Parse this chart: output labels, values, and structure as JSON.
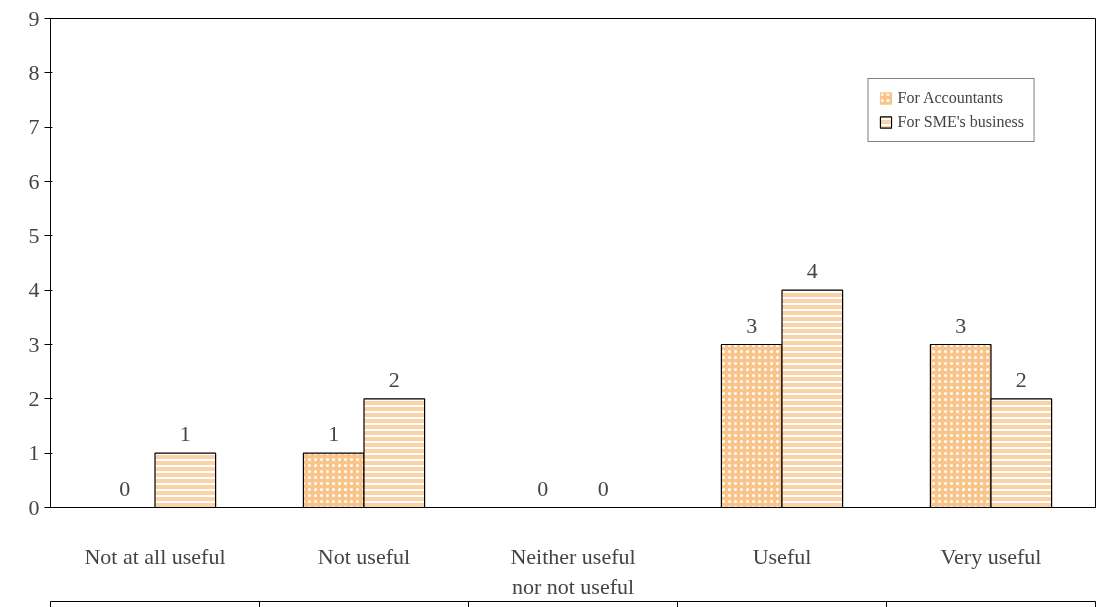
{
  "chart_data": {
    "type": "bar",
    "categories": [
      "Not at all useful",
      "Not useful",
      "Neither useful\nnor not useful",
      "Useful",
      "Very useful"
    ],
    "series": [
      {
        "name": "For Accountants",
        "color": "#f9c48a",
        "values": [
          0,
          1,
          0,
          3,
          3
        ]
      },
      {
        "name": "For SME's business",
        "color": "#fbd3a8",
        "values": [
          1,
          2,
          0,
          4,
          2
        ]
      }
    ],
    "ylim": [
      0,
      9
    ],
    "yticks": [
      0,
      1,
      2,
      3,
      4,
      5,
      6,
      7,
      8,
      9
    ],
    "data_labels": true,
    "grid": false,
    "legend": "top right"
  }
}
